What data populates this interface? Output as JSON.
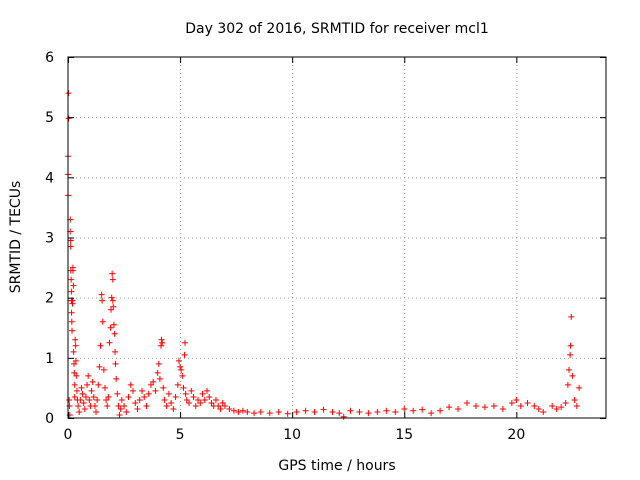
{
  "chart_data": {
    "type": "scatter",
    "title": "Day 302 of 2016, SRMTID for receiver mcl1",
    "xlabel": "GPS time / hours",
    "ylabel": "SRMTID / TECUs",
    "xlim": [
      0,
      24
    ],
    "ylim": [
      0,
      6
    ],
    "xticks": [
      0,
      5,
      10,
      15,
      20
    ],
    "yticks": [
      0,
      1,
      2,
      3,
      4,
      5,
      6
    ],
    "grid": true,
    "marker": "+",
    "color": "#ff0000",
    "series": [
      {
        "name": "SRMTID",
        "points": [
          [
            0.0,
            4.35
          ],
          [
            0.0,
            4.05
          ],
          [
            0.0,
            3.7
          ],
          [
            0.02,
            5.4
          ],
          [
            0.03,
            4.98
          ],
          [
            0.05,
            0.3
          ],
          [
            0.07,
            0.2
          ],
          [
            0.08,
            0.05
          ],
          [
            0.1,
            3.3
          ],
          [
            0.1,
            3.1
          ],
          [
            0.12,
            2.95
          ],
          [
            0.12,
            2.85
          ],
          [
            0.13,
            2.45
          ],
          [
            0.14,
            2.3
          ],
          [
            0.15,
            2.1
          ],
          [
            0.15,
            1.95
          ],
          [
            0.16,
            1.75
          ],
          [
            0.17,
            1.6
          ],
          [
            0.18,
            1.45
          ],
          [
            0.2,
            1.95
          ],
          [
            0.2,
            1.9
          ],
          [
            0.22,
            2.5
          ],
          [
            0.22,
            2.45
          ],
          [
            0.24,
            2.2
          ],
          [
            0.25,
            1.1
          ],
          [
            0.27,
            0.9
          ],
          [
            0.28,
            0.75
          ],
          [
            0.3,
            0.55
          ],
          [
            0.3,
            0.35
          ],
          [
            0.32,
            1.3
          ],
          [
            0.34,
            1.2
          ],
          [
            0.35,
            0.95
          ],
          [
            0.37,
            0.7
          ],
          [
            0.4,
            0.45
          ],
          [
            0.42,
            0.3
          ],
          [
            0.45,
            0.2
          ],
          [
            0.5,
            0.1
          ],
          [
            0.55,
            0.3
          ],
          [
            0.6,
            0.5
          ],
          [
            0.65,
            0.4
          ],
          [
            0.7,
            0.25
          ],
          [
            0.75,
            0.15
          ],
          [
            0.8,
            0.35
          ],
          [
            0.85,
            0.55
          ],
          [
            0.9,
            0.7
          ],
          [
            0.95,
            0.3
          ],
          [
            1.0,
            0.2
          ],
          [
            1.05,
            0.45
          ],
          [
            1.1,
            0.6
          ],
          [
            1.15,
            0.35
          ],
          [
            1.2,
            0.2
          ],
          [
            1.25,
            0.1
          ],
          [
            1.3,
            0.3
          ],
          [
            1.35,
            0.55
          ],
          [
            1.4,
            0.85
          ],
          [
            1.45,
            1.2
          ],
          [
            1.5,
            2.05
          ],
          [
            1.52,
            1.95
          ],
          [
            1.55,
            1.6
          ],
          [
            1.6,
            0.8
          ],
          [
            1.65,
            0.5
          ],
          [
            1.7,
            0.3
          ],
          [
            1.75,
            0.2
          ],
          [
            1.8,
            0.35
          ],
          [
            1.85,
            1.25
          ],
          [
            1.9,
            1.5
          ],
          [
            1.92,
            1.8
          ],
          [
            1.95,
            2.0
          ],
          [
            1.97,
            2.4
          ],
          [
            2.0,
            2.3
          ],
          [
            2.0,
            1.95
          ],
          [
            2.02,
            1.85
          ],
          [
            2.05,
            1.55
          ],
          [
            2.08,
            1.4
          ],
          [
            2.1,
            1.1
          ],
          [
            2.12,
            0.9
          ],
          [
            2.15,
            0.65
          ],
          [
            2.2,
            0.4
          ],
          [
            2.25,
            0.2
          ],
          [
            2.3,
            0.05
          ],
          [
            2.35,
            0.15
          ],
          [
            2.4,
            0.3
          ],
          [
            2.5,
            0.2
          ],
          [
            2.6,
            0.1
          ],
          [
            2.7,
            0.35
          ],
          [
            2.8,
            0.55
          ],
          [
            2.9,
            0.45
          ],
          [
            3.0,
            0.25
          ],
          [
            3.1,
            0.15
          ],
          [
            3.2,
            0.3
          ],
          [
            3.3,
            0.45
          ],
          [
            3.4,
            0.35
          ],
          [
            3.5,
            0.2
          ],
          [
            3.6,
            0.4
          ],
          [
            3.7,
            0.55
          ],
          [
            3.8,
            0.6
          ],
          [
            3.9,
            0.45
          ],
          [
            4.0,
            0.75
          ],
          [
            4.05,
            0.9
          ],
          [
            4.1,
            0.65
          ],
          [
            4.15,
            1.2
          ],
          [
            4.17,
            1.3
          ],
          [
            4.2,
            1.25
          ],
          [
            4.25,
            0.5
          ],
          [
            4.3,
            0.3
          ],
          [
            4.4,
            0.2
          ],
          [
            4.5,
            0.4
          ],
          [
            4.6,
            0.25
          ],
          [
            4.7,
            0.15
          ],
          [
            4.8,
            0.35
          ],
          [
            4.9,
            0.55
          ],
          [
            4.95,
            0.95
          ],
          [
            5.0,
            0.85
          ],
          [
            5.05,
            0.8
          ],
          [
            5.1,
            0.7
          ],
          [
            5.15,
            0.5
          ],
          [
            5.2,
            1.05
          ],
          [
            5.22,
            1.25
          ],
          [
            5.25,
            0.4
          ],
          [
            5.3,
            0.3
          ],
          [
            5.4,
            0.25
          ],
          [
            5.5,
            0.45
          ],
          [
            5.6,
            0.35
          ],
          [
            5.7,
            0.2
          ],
          [
            5.8,
            0.3
          ],
          [
            5.9,
            0.25
          ],
          [
            6.0,
            0.4
          ],
          [
            6.1,
            0.3
          ],
          [
            6.2,
            0.45
          ],
          [
            6.3,
            0.35
          ],
          [
            6.4,
            0.25
          ],
          [
            6.5,
            0.2
          ],
          [
            6.6,
            0.3
          ],
          [
            6.7,
            0.2
          ],
          [
            6.8,
            0.15
          ],
          [
            6.9,
            0.25
          ],
          [
            7.0,
            0.2
          ],
          [
            7.2,
            0.15
          ],
          [
            7.4,
            0.12
          ],
          [
            7.6,
            0.1
          ],
          [
            7.8,
            0.12
          ],
          [
            8.0,
            0.1
          ],
          [
            8.3,
            0.08
          ],
          [
            8.6,
            0.1
          ],
          [
            9.0,
            0.08
          ],
          [
            9.4,
            0.1
          ],
          [
            9.8,
            0.07
          ],
          [
            10.2,
            0.1
          ],
          [
            10.6,
            0.12
          ],
          [
            11.0,
            0.1
          ],
          [
            11.4,
            0.14
          ],
          [
            11.8,
            0.1
          ],
          [
            12.1,
            0.08
          ],
          [
            12.3,
            0.02
          ],
          [
            12.6,
            0.12
          ],
          [
            13.0,
            0.1
          ],
          [
            13.4,
            0.08
          ],
          [
            13.8,
            0.1
          ],
          [
            14.2,
            0.12
          ],
          [
            14.6,
            0.1
          ],
          [
            15.0,
            0.15
          ],
          [
            15.4,
            0.12
          ],
          [
            15.8,
            0.14
          ],
          [
            16.2,
            0.08
          ],
          [
            16.6,
            0.12
          ],
          [
            17.0,
            0.18
          ],
          [
            17.4,
            0.15
          ],
          [
            17.8,
            0.25
          ],
          [
            18.2,
            0.2
          ],
          [
            18.6,
            0.18
          ],
          [
            19.0,
            0.2
          ],
          [
            19.4,
            0.15
          ],
          [
            19.8,
            0.25
          ],
          [
            20.0,
            0.3
          ],
          [
            20.2,
            0.2
          ],
          [
            20.5,
            0.25
          ],
          [
            20.8,
            0.2
          ],
          [
            21.0,
            0.15
          ],
          [
            21.2,
            0.1
          ],
          [
            21.6,
            0.2
          ],
          [
            21.8,
            0.15
          ],
          [
            22.0,
            0.18
          ],
          [
            22.2,
            0.25
          ],
          [
            22.3,
            0.55
          ],
          [
            22.35,
            0.8
          ],
          [
            22.4,
            1.05
          ],
          [
            22.42,
            1.2
          ],
          [
            22.45,
            1.68
          ],
          [
            22.5,
            0.7
          ],
          [
            22.6,
            0.3
          ],
          [
            22.7,
            0.2
          ],
          [
            22.8,
            0.5
          ]
        ]
      }
    ]
  }
}
